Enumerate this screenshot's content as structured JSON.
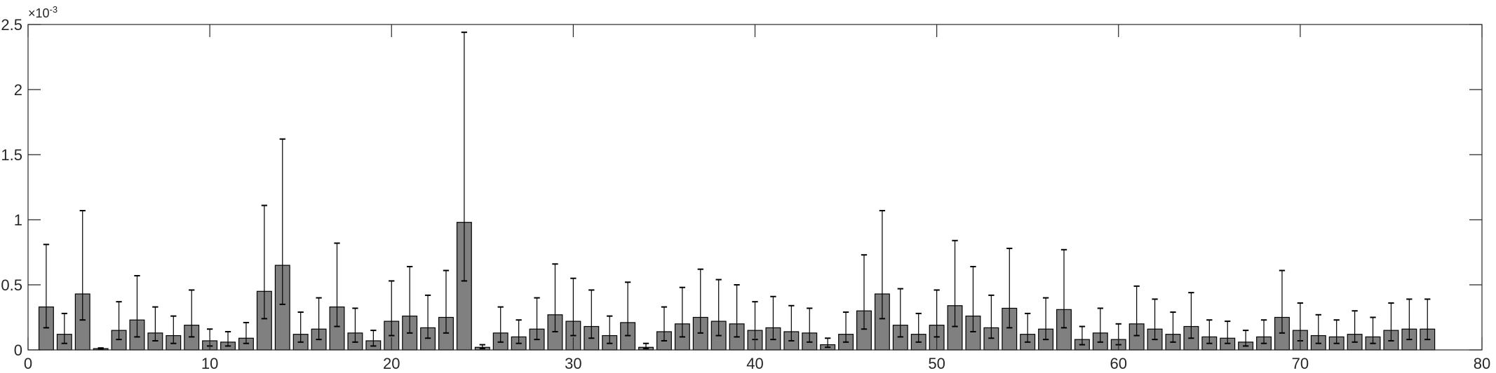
{
  "chart_data": {
    "type": "bar",
    "title": "",
    "xlabel": "",
    "ylabel": "",
    "y_scale_factor_label": "×10",
    "y_scale_exponent": "-3",
    "xlim": [
      0,
      80
    ],
    "ylim": [
      0,
      2.5
    ],
    "x_ticks": [
      "0",
      "10",
      "20",
      "30",
      "40",
      "50",
      "60",
      "70",
      "80"
    ],
    "y_ticks": [
      "0",
      "0.5",
      "1",
      "1.5",
      "2",
      "2.5"
    ],
    "grid": false,
    "legend": "none",
    "colors": {
      "bar_fill": "#808080",
      "bar_stroke": "#000000",
      "axis": "#262626",
      "error_bar": "#000000"
    },
    "x": [
      1,
      2,
      3,
      4,
      5,
      6,
      7,
      8,
      9,
      10,
      11,
      12,
      13,
      14,
      15,
      16,
      17,
      18,
      19,
      20,
      21,
      22,
      23,
      24,
      25,
      26,
      27,
      28,
      29,
      30,
      31,
      32,
      33,
      34,
      35,
      36,
      37,
      38,
      39,
      40,
      41,
      42,
      43,
      44,
      45,
      46,
      47,
      48,
      49,
      50,
      51,
      52,
      53,
      54,
      55,
      56,
      57,
      58,
      59,
      60,
      61,
      62,
      63,
      64,
      65,
      66,
      67,
      68,
      69,
      70,
      71,
      72,
      73,
      74,
      75,
      76,
      77
    ],
    "values": [
      0.33,
      0.12,
      0.43,
      0.01,
      0.15,
      0.23,
      0.13,
      0.11,
      0.19,
      0.07,
      0.06,
      0.09,
      0.45,
      0.65,
      0.12,
      0.16,
      0.33,
      0.13,
      0.07,
      0.22,
      0.26,
      0.17,
      0.25,
      0.98,
      0.02,
      0.13,
      0.1,
      0.16,
      0.27,
      0.22,
      0.18,
      0.11,
      0.21,
      0.02,
      0.14,
      0.2,
      0.25,
      0.22,
      0.2,
      0.15,
      0.17,
      0.14,
      0.13,
      0.04,
      0.12,
      0.3,
      0.43,
      0.19,
      0.12,
      0.19,
      0.34,
      0.26,
      0.17,
      0.32,
      0.12,
      0.16,
      0.31,
      0.08,
      0.13,
      0.08,
      0.2,
      0.16,
      0.12,
      0.18,
      0.1,
      0.09,
      0.06,
      0.1,
      0.25,
      0.15,
      0.11,
      0.1,
      0.12,
      0.1,
      0.15,
      0.16,
      0.16
    ],
    "error_low": [
      0.17,
      0.05,
      0.23,
      0.005,
      0.08,
      0.1,
      0.07,
      0.05,
      0.1,
      0.03,
      0.03,
      0.05,
      0.24,
      0.35,
      0.06,
      0.08,
      0.18,
      0.06,
      0.03,
      0.11,
      0.13,
      0.09,
      0.13,
      0.53,
      0.01,
      0.06,
      0.05,
      0.08,
      0.14,
      0.11,
      0.09,
      0.05,
      0.11,
      0.01,
      0.07,
      0.1,
      0.13,
      0.11,
      0.1,
      0.08,
      0.08,
      0.07,
      0.06,
      0.02,
      0.06,
      0.16,
      0.24,
      0.1,
      0.06,
      0.1,
      0.18,
      0.14,
      0.09,
      0.17,
      0.06,
      0.08,
      0.17,
      0.04,
      0.06,
      0.04,
      0.11,
      0.08,
      0.06,
      0.09,
      0.05,
      0.05,
      0.03,
      0.05,
      0.13,
      0.07,
      0.05,
      0.05,
      0.06,
      0.05,
      0.07,
      0.08,
      0.08
    ],
    "error_high": [
      0.81,
      0.28,
      1.07,
      0.015,
      0.37,
      0.57,
      0.33,
      0.26,
      0.46,
      0.16,
      0.14,
      0.21,
      1.11,
      1.62,
      0.29,
      0.4,
      0.82,
      0.32,
      0.15,
      0.53,
      0.64,
      0.42,
      0.61,
      2.44,
      0.04,
      0.33,
      0.23,
      0.4,
      0.66,
      0.55,
      0.46,
      0.26,
      0.52,
      0.05,
      0.33,
      0.48,
      0.62,
      0.54,
      0.5,
      0.37,
      0.41,
      0.34,
      0.32,
      0.09,
      0.29,
      0.73,
      1.07,
      0.47,
      0.28,
      0.46,
      0.84,
      0.64,
      0.42,
      0.78,
      0.28,
      0.4,
      0.77,
      0.18,
      0.32,
      0.2,
      0.49,
      0.39,
      0.29,
      0.44,
      0.23,
      0.22,
      0.15,
      0.23,
      0.61,
      0.36,
      0.27,
      0.23,
      0.3,
      0.25,
      0.36,
      0.39,
      0.39
    ]
  }
}
